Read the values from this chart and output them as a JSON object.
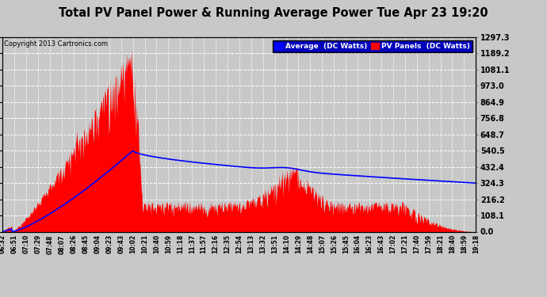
{
  "title": "Total PV Panel Power & Running Average Power Tue Apr 23 19:20",
  "copyright": "Copyright 2013 Cartronics.com",
  "legend_avg": "Average  (DC Watts)",
  "legend_pv": "PV Panels  (DC Watts)",
  "ymax": 1297.3,
  "ymin": 0.0,
  "yticks": [
    0.0,
    108.1,
    216.2,
    324.3,
    432.4,
    540.5,
    648.7,
    756.8,
    864.9,
    973.0,
    1081.1,
    1189.2,
    1297.3
  ],
  "ytick_labels": [
    "0.0",
    "108.1",
    "216.2",
    "324.3",
    "432.4",
    "540.5",
    "648.7",
    "756.8",
    "864.9",
    "973.0",
    "1081.1",
    "1189.2",
    "1297.3"
  ],
  "background_color": "#c8c8c8",
  "plot_bg_color": "#c8c8c8",
  "bar_color": "#ff0000",
  "line_color": "#0000ff",
  "title_color": "#000000",
  "grid_color": "#ffffff",
  "x_labels": [
    "06:32",
    "06:51",
    "07:10",
    "07:29",
    "07:48",
    "08:07",
    "08:26",
    "08:45",
    "09:04",
    "09:23",
    "09:43",
    "10:02",
    "10:21",
    "10:40",
    "10:59",
    "11:18",
    "11:37",
    "11:57",
    "12:16",
    "12:35",
    "12:54",
    "13:13",
    "13:32",
    "13:51",
    "14:10",
    "14:29",
    "14:48",
    "15:07",
    "15:26",
    "15:45",
    "16:04",
    "16:23",
    "16:43",
    "17:02",
    "17:21",
    "17:40",
    "17:59",
    "18:21",
    "18:40",
    "18:59",
    "19:18"
  ]
}
